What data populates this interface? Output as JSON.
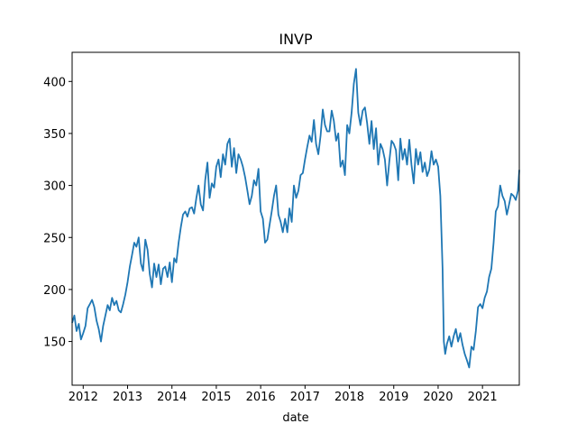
{
  "chart_data": {
    "type": "line",
    "title": "INVP",
    "xlabel": "date",
    "ylabel": "",
    "xlim": [
      2011.75,
      2021.83
    ],
    "ylim": [
      108,
      428
    ],
    "grid": false,
    "x_ticks": [
      {
        "value": 2012,
        "label": "2012"
      },
      {
        "value": 2013,
        "label": "2013"
      },
      {
        "value": 2014,
        "label": "2014"
      },
      {
        "value": 2015,
        "label": "2015"
      },
      {
        "value": 2016,
        "label": "2016"
      },
      {
        "value": 2017,
        "label": "2017"
      },
      {
        "value": 2018,
        "label": "2018"
      },
      {
        "value": 2019,
        "label": "2019"
      },
      {
        "value": 2020,
        "label": "2020"
      },
      {
        "value": 2021,
        "label": "2021"
      }
    ],
    "y_ticks": [
      {
        "value": 150,
        "label": "150"
      },
      {
        "value": 200,
        "label": "200"
      },
      {
        "value": 250,
        "label": "250"
      },
      {
        "value": 300,
        "label": "300"
      },
      {
        "value": 350,
        "label": "350"
      },
      {
        "value": 400,
        "label": "400"
      }
    ],
    "series": [
      {
        "color": "#1f77b4",
        "points": [
          [
            2011.75,
            168
          ],
          [
            2011.8,
            175
          ],
          [
            2011.85,
            160
          ],
          [
            2011.9,
            167
          ],
          [
            2011.95,
            152
          ],
          [
            2012.0,
            158
          ],
          [
            2012.05,
            165
          ],
          [
            2012.1,
            182
          ],
          [
            2012.15,
            186
          ],
          [
            2012.2,
            190
          ],
          [
            2012.25,
            183
          ],
          [
            2012.3,
            170
          ],
          [
            2012.35,
            162
          ],
          [
            2012.4,
            150
          ],
          [
            2012.45,
            165
          ],
          [
            2012.5,
            175
          ],
          [
            2012.55,
            185
          ],
          [
            2012.6,
            180
          ],
          [
            2012.65,
            192
          ],
          [
            2012.7,
            185
          ],
          [
            2012.75,
            189
          ],
          [
            2012.8,
            180
          ],
          [
            2012.85,
            178
          ],
          [
            2012.9,
            186
          ],
          [
            2012.95,
            195
          ],
          [
            2013.0,
            207
          ],
          [
            2013.05,
            222
          ],
          [
            2013.1,
            233
          ],
          [
            2013.15,
            245
          ],
          [
            2013.2,
            241
          ],
          [
            2013.25,
            250
          ],
          [
            2013.3,
            225
          ],
          [
            2013.35,
            218
          ],
          [
            2013.4,
            248
          ],
          [
            2013.45,
            238
          ],
          [
            2013.5,
            215
          ],
          [
            2013.55,
            202
          ],
          [
            2013.6,
            225
          ],
          [
            2013.65,
            212
          ],
          [
            2013.7,
            224
          ],
          [
            2013.75,
            205
          ],
          [
            2013.8,
            220
          ],
          [
            2013.85,
            222
          ],
          [
            2013.9,
            212
          ],
          [
            2013.95,
            226
          ],
          [
            2014.0,
            207
          ],
          [
            2014.05,
            230
          ],
          [
            2014.1,
            226
          ],
          [
            2014.15,
            245
          ],
          [
            2014.2,
            260
          ],
          [
            2014.25,
            272
          ],
          [
            2014.3,
            275
          ],
          [
            2014.35,
            270
          ],
          [
            2014.4,
            278
          ],
          [
            2014.45,
            279
          ],
          [
            2014.5,
            273
          ],
          [
            2014.55,
            288
          ],
          [
            2014.6,
            300
          ],
          [
            2014.65,
            282
          ],
          [
            2014.7,
            276
          ],
          [
            2014.75,
            305
          ],
          [
            2014.8,
            322
          ],
          [
            2014.85,
            288
          ],
          [
            2014.9,
            302
          ],
          [
            2014.95,
            298
          ],
          [
            2015.0,
            318
          ],
          [
            2015.05,
            325
          ],
          [
            2015.1,
            308
          ],
          [
            2015.15,
            330
          ],
          [
            2015.2,
            320
          ],
          [
            2015.25,
            340
          ],
          [
            2015.3,
            345
          ],
          [
            2015.35,
            318
          ],
          [
            2015.4,
            336
          ],
          [
            2015.45,
            312
          ],
          [
            2015.5,
            330
          ],
          [
            2015.55,
            325
          ],
          [
            2015.6,
            318
          ],
          [
            2015.65,
            308
          ],
          [
            2015.7,
            295
          ],
          [
            2015.75,
            282
          ],
          [
            2015.8,
            290
          ],
          [
            2015.85,
            305
          ],
          [
            2015.9,
            300
          ],
          [
            2015.95,
            316
          ],
          [
            2016.0,
            275
          ],
          [
            2016.05,
            268
          ],
          [
            2016.1,
            245
          ],
          [
            2016.15,
            248
          ],
          [
            2016.2,
            262
          ],
          [
            2016.25,
            275
          ],
          [
            2016.3,
            290
          ],
          [
            2016.35,
            300
          ],
          [
            2016.4,
            272
          ],
          [
            2016.45,
            265
          ],
          [
            2016.5,
            255
          ],
          [
            2016.55,
            268
          ],
          [
            2016.6,
            255
          ],
          [
            2016.65,
            278
          ],
          [
            2016.7,
            265
          ],
          [
            2016.75,
            300
          ],
          [
            2016.8,
            288
          ],
          [
            2016.85,
            295
          ],
          [
            2016.9,
            310
          ],
          [
            2016.95,
            312
          ],
          [
            2017.0,
            325
          ],
          [
            2017.05,
            337
          ],
          [
            2017.1,
            348
          ],
          [
            2017.15,
            342
          ],
          [
            2017.2,
            363
          ],
          [
            2017.25,
            340
          ],
          [
            2017.3,
            330
          ],
          [
            2017.35,
            348
          ],
          [
            2017.4,
            373
          ],
          [
            2017.45,
            358
          ],
          [
            2017.5,
            352
          ],
          [
            2017.55,
            352
          ],
          [
            2017.6,
            372
          ],
          [
            2017.65,
            362
          ],
          [
            2017.7,
            343
          ],
          [
            2017.75,
            350
          ],
          [
            2017.8,
            318
          ],
          [
            2017.85,
            324
          ],
          [
            2017.9,
            310
          ],
          [
            2017.95,
            358
          ],
          [
            2018.0,
            350
          ],
          [
            2018.05,
            370
          ],
          [
            2018.1,
            398
          ],
          [
            2018.15,
            412
          ],
          [
            2018.2,
            370
          ],
          [
            2018.25,
            358
          ],
          [
            2018.3,
            372
          ],
          [
            2018.35,
            375
          ],
          [
            2018.4,
            360
          ],
          [
            2018.45,
            340
          ],
          [
            2018.5,
            362
          ],
          [
            2018.55,
            335
          ],
          [
            2018.6,
            355
          ],
          [
            2018.65,
            320
          ],
          [
            2018.7,
            340
          ],
          [
            2018.75,
            335
          ],
          [
            2018.8,
            325
          ],
          [
            2018.85,
            300
          ],
          [
            2018.9,
            323
          ],
          [
            2018.95,
            343
          ],
          [
            2019.0,
            340
          ],
          [
            2019.05,
            334
          ],
          [
            2019.1,
            305
          ],
          [
            2019.15,
            345
          ],
          [
            2019.2,
            325
          ],
          [
            2019.25,
            335
          ],
          [
            2019.3,
            320
          ],
          [
            2019.35,
            344
          ],
          [
            2019.4,
            320
          ],
          [
            2019.45,
            302
          ],
          [
            2019.5,
            335
          ],
          [
            2019.55,
            320
          ],
          [
            2019.6,
            332
          ],
          [
            2019.65,
            313
          ],
          [
            2019.7,
            322
          ],
          [
            2019.75,
            309
          ],
          [
            2019.8,
            315
          ],
          [
            2019.85,
            333
          ],
          [
            2019.9,
            320
          ],
          [
            2019.95,
            325
          ],
          [
            2020.0,
            318
          ],
          [
            2020.05,
            290
          ],
          [
            2020.1,
            220
          ],
          [
            2020.13,
            150
          ],
          [
            2020.16,
            138
          ],
          [
            2020.2,
            148
          ],
          [
            2020.25,
            155
          ],
          [
            2020.3,
            145
          ],
          [
            2020.35,
            155
          ],
          [
            2020.4,
            162
          ],
          [
            2020.45,
            150
          ],
          [
            2020.5,
            158
          ],
          [
            2020.55,
            147
          ],
          [
            2020.6,
            138
          ],
          [
            2020.65,
            132
          ],
          [
            2020.7,
            125
          ],
          [
            2020.75,
            145
          ],
          [
            2020.8,
            142
          ],
          [
            2020.85,
            160
          ],
          [
            2020.9,
            183
          ],
          [
            2020.95,
            186
          ],
          [
            2021.0,
            182
          ],
          [
            2021.05,
            192
          ],
          [
            2021.1,
            198
          ],
          [
            2021.15,
            212
          ],
          [
            2021.2,
            220
          ],
          [
            2021.25,
            245
          ],
          [
            2021.3,
            275
          ],
          [
            2021.35,
            280
          ],
          [
            2021.4,
            300
          ],
          [
            2021.45,
            290
          ],
          [
            2021.5,
            285
          ],
          [
            2021.55,
            272
          ],
          [
            2021.6,
            282
          ],
          [
            2021.65,
            292
          ],
          [
            2021.7,
            290
          ],
          [
            2021.75,
            286
          ],
          [
            2021.8,
            295
          ],
          [
            2021.83,
            315
          ]
        ]
      }
    ]
  }
}
